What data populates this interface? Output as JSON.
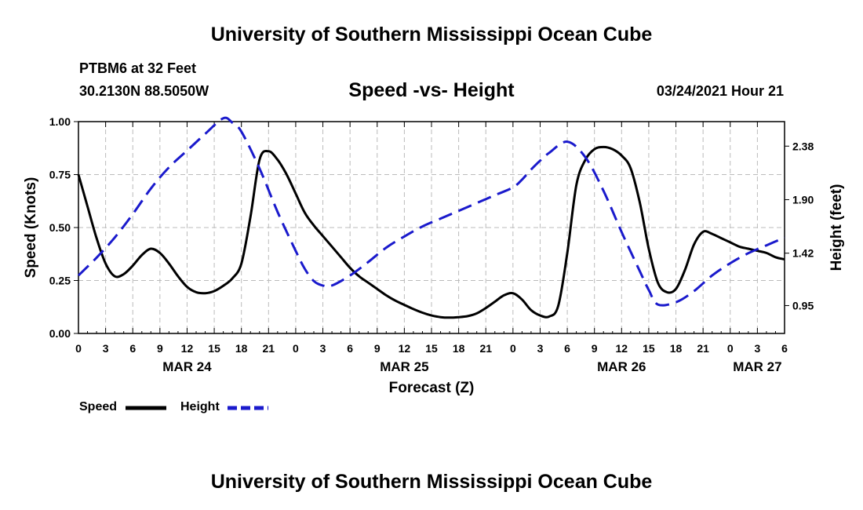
{
  "title": "University of Southern Mississippi Ocean Cube",
  "footer_title": "University of Southern Mississippi Ocean Cube",
  "station": "PTBM6 at 32 Feet",
  "coords": "30.2130N 88.5050W",
  "subtitle": "Speed -vs- Height",
  "datetime": "03/24/2021 Hour 21",
  "colors": {
    "speed": "#000000",
    "height": "#1a1acc",
    "grid": "#bbbbbb"
  },
  "chart_data": {
    "type": "line",
    "xlabel": "Forecast (Z)",
    "ylabel_left": "Speed (Knots)",
    "ylabel_right": "Height (feet)",
    "x_range_hours": [
      0,
      78
    ],
    "ylim_left": [
      0,
      1
    ],
    "ylim_right": [
      0.7,
      2.6
    ],
    "left_ticks": [
      "0.00",
      "0.25",
      "0.50",
      "0.75",
      "1.00"
    ],
    "left_tick_values": [
      0,
      0.25,
      0.5,
      0.75,
      1.0
    ],
    "right_ticks": [
      "0.95",
      "1.42",
      "1.90",
      "2.38"
    ],
    "right_tick_values": [
      0.95,
      1.42,
      1.9,
      2.38
    ],
    "x_tick_labels": [
      "0",
      "3",
      "6",
      "9",
      "12",
      "15",
      "18",
      "21",
      "0",
      "3",
      "6",
      "9",
      "12",
      "15",
      "18",
      "21",
      "0",
      "3",
      "6",
      "9",
      "12",
      "15",
      "18",
      "21",
      "0",
      "3",
      "6"
    ],
    "day_labels": [
      {
        "label": "MAR 24",
        "hour": 12
      },
      {
        "label": "MAR 25",
        "hour": 36
      },
      {
        "label": "MAR 26",
        "hour": 60
      },
      {
        "label": "MAR 27",
        "hour": 75
      }
    ],
    "legend": [
      "Speed",
      "Height"
    ],
    "series": [
      {
        "name": "Speed",
        "style": "solid",
        "axis": "left",
        "x": [
          0,
          1,
          2,
          3,
          4,
          5,
          6,
          7,
          8,
          9,
          10,
          11,
          12,
          13,
          14,
          15,
          16,
          17,
          18,
          19,
          20,
          21,
          22,
          23,
          24,
          25,
          26,
          27,
          28,
          29,
          30,
          31,
          32,
          33,
          34,
          35,
          36,
          37,
          38,
          39,
          40,
          41,
          42,
          43,
          44,
          45,
          46,
          47,
          48,
          49,
          50,
          51,
          52,
          53,
          54,
          55,
          56,
          57,
          58,
          59,
          60,
          61,
          62,
          63,
          64,
          65,
          66,
          67,
          68,
          69,
          70,
          71,
          72,
          73,
          74,
          75,
          76,
          77,
          78
        ],
        "values": [
          0.75,
          0.6,
          0.45,
          0.33,
          0.27,
          0.28,
          0.32,
          0.37,
          0.4,
          0.38,
          0.33,
          0.27,
          0.22,
          0.195,
          0.19,
          0.2,
          0.225,
          0.26,
          0.33,
          0.55,
          0.82,
          0.86,
          0.82,
          0.75,
          0.66,
          0.57,
          0.51,
          0.46,
          0.41,
          0.36,
          0.31,
          0.27,
          0.24,
          0.21,
          0.18,
          0.155,
          0.135,
          0.115,
          0.098,
          0.085,
          0.077,
          0.075,
          0.077,
          0.082,
          0.095,
          0.12,
          0.15,
          0.18,
          0.19,
          0.16,
          0.11,
          0.085,
          0.08,
          0.13,
          0.38,
          0.7,
          0.82,
          0.87,
          0.88,
          0.87,
          0.84,
          0.78,
          0.62,
          0.4,
          0.24,
          0.195,
          0.21,
          0.3,
          0.42,
          0.48,
          0.47,
          0.45,
          0.43,
          0.41,
          0.4,
          0.39,
          0.38,
          0.36,
          0.35
        ]
      },
      {
        "name": "Height",
        "style": "dashed",
        "axis": "right",
        "x": [
          0,
          2,
          4,
          6,
          8,
          10,
          12,
          14,
          16,
          17,
          18,
          20,
          22,
          24,
          25,
          26,
          27,
          28,
          30,
          32,
          34,
          36,
          38,
          40,
          42,
          44,
          46,
          48,
          49,
          50,
          51,
          52,
          54,
          56,
          58,
          60,
          62,
          63,
          64,
          66,
          68,
          70,
          72,
          74,
          76,
          78
        ],
        "values": [
          1.22,
          1.38,
          1.56,
          1.77,
          2.0,
          2.19,
          2.34,
          2.49,
          2.63,
          2.59,
          2.51,
          2.18,
          1.79,
          1.44,
          1.28,
          1.17,
          1.13,
          1.13,
          1.22,
          1.34,
          1.47,
          1.57,
          1.66,
          1.73,
          1.8,
          1.87,
          1.94,
          2.01,
          2.08,
          2.17,
          2.25,
          2.32,
          2.42,
          2.28,
          1.98,
          1.61,
          1.26,
          1.09,
          0.96,
          0.98,
          1.08,
          1.22,
          1.33,
          1.42,
          1.49,
          1.56
        ]
      }
    ]
  }
}
